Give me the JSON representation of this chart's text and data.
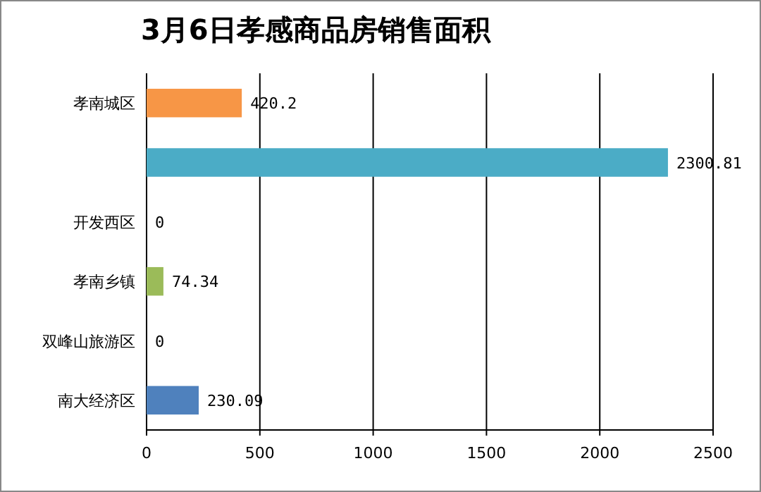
{
  "chart_data": {
    "type": "bar",
    "orientation": "horizontal",
    "title": "3月6日孝感商品房销售面积",
    "categories": [
      "孝南城区",
      null,
      "开发西区",
      "孝南乡镇",
      "双峰山旅游区",
      "南大经济区"
    ],
    "values": [
      420.2,
      2300.81,
      0,
      74.34,
      0,
      230.09
    ],
    "colors": [
      "#f79646",
      "#4bacc6",
      null,
      "#9bbb59",
      null,
      "#4f81bd"
    ],
    "xlim": [
      0,
      2500
    ],
    "xticks": [
      0,
      500,
      1000,
      1500,
      2000,
      2500
    ],
    "grid": "x",
    "data_labels": true
  }
}
